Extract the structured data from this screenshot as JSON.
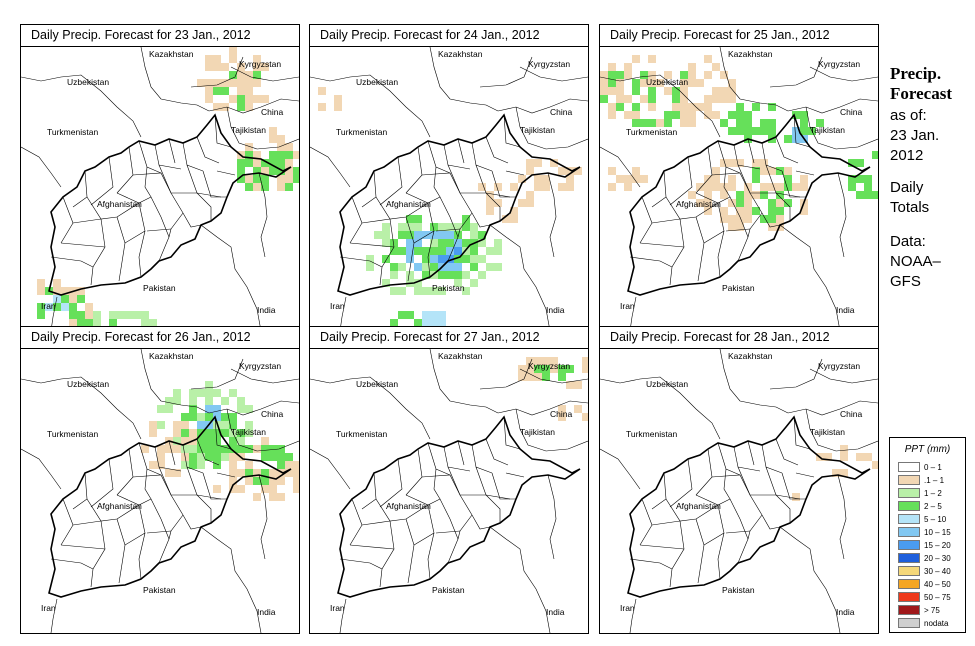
{
  "panels": [
    {
      "title": "Daily Precip. Forecast for  23 Jan., 2012"
    },
    {
      "title": "Daily Precip. Forecast for  24 Jan., 2012"
    },
    {
      "title": "Daily Precip. Forecast for  25 Jan., 2012"
    },
    {
      "title": "Daily Precip. Forecast for  26 Jan., 2012"
    },
    {
      "title": "Daily Precip. Forecast for  27 Jan., 2012"
    },
    {
      "title": "Daily Precip. Forecast for  28 Jan., 2012"
    }
  ],
  "map_labels": {
    "uzbekistan": "Uzbekistan",
    "kazakhstan": "Kazakhstan",
    "kyrgyzstan": "Kyrgyzstan",
    "china": "China",
    "turkmenistan": "Turkmenistan",
    "tajikistan": "Tajikistan",
    "afghanistan": "Afghanistan",
    "pakistan": "Pakistan",
    "iran": "Iran",
    "india": "India"
  },
  "side_info": {
    "heading_line1": "Precip.",
    "heading_line2": "Forecast",
    "as_of": "as of:",
    "date_line1": "23 Jan.",
    "date_line2": "2012",
    "totals_line1": "Daily",
    "totals_line2": "Totals",
    "data_line1": "Data:",
    "data_line2": "NOAA–",
    "data_line3": "GFS"
  },
  "legend": {
    "title": "PPT (mm)",
    "classes": [
      {
        "label": "0 – 1",
        "color": "#ffffff"
      },
      {
        "label": ".1 – 1",
        "color": "#f2d7b4"
      },
      {
        "label": "1 – 2",
        "color": "#b9f0a8"
      },
      {
        "label": "2 – 5",
        "color": "#66e05a"
      },
      {
        "label": "5 – 10",
        "color": "#b4e4f8"
      },
      {
        "label": "10 – 15",
        "color": "#82c8f2"
      },
      {
        "label": "15 – 20",
        "color": "#4a9cf0"
      },
      {
        "label": "20 – 30",
        "color": "#1e5fdc"
      },
      {
        "label": "30 – 40",
        "color": "#f5d87a"
      },
      {
        "label": "40 – 50",
        "color": "#f5a623"
      },
      {
        "label": "50 – 75",
        "color": "#ee3a1c"
      },
      {
        "label": "> 75",
        "color": "#a0181a"
      },
      {
        "label": "nodata",
        "color": "#cfcfcf"
      }
    ]
  }
}
